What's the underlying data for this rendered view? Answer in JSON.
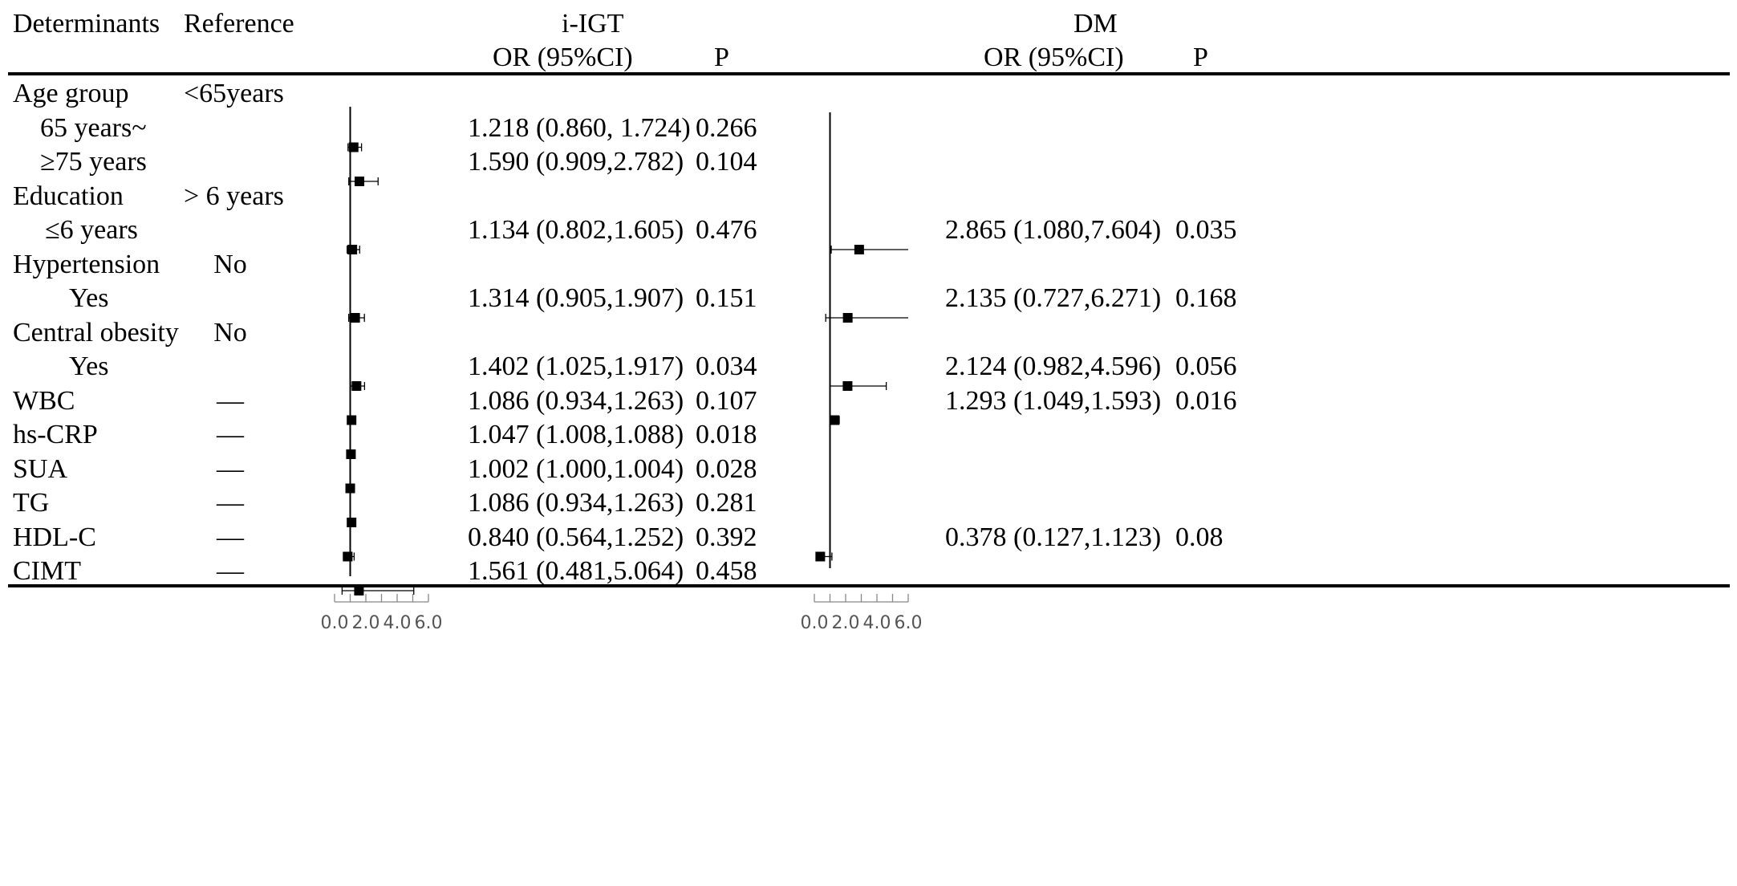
{
  "headers": {
    "determinants": "Determinants",
    "reference": "Reference",
    "group1": "i-IGT",
    "group2": "DM",
    "or1": "OR (95%CI)",
    "p1": "P",
    "or2": "OR (95%CI)",
    "p2": "P"
  },
  "rows": [
    {
      "label": "Age group",
      "ref": "<65years"
    },
    {
      "label": "65 years~",
      "ref": "",
      "or1": "1.218 (0.860, 1.724)",
      "p1": "0.266",
      "or2": "",
      "p2": ""
    },
    {
      "label": "≥75 years",
      "ref": "",
      "or1": "1.590 (0.909,2.782)",
      "p1": "0.104",
      "or2": "",
      "p2": ""
    },
    {
      "label": "Education",
      "ref": "> 6 years"
    },
    {
      "label": "≤6 years",
      "ref": "",
      "or1": "1.134 (0.802,1.605)",
      "p1": "0.476",
      "or2": "2.865 (1.080,7.604)",
      "p2": "0.035"
    },
    {
      "label": "Hypertension",
      "ref": "No"
    },
    {
      "label": "Yes",
      "ref": "",
      "or1": "1.314 (0.905,1.907)",
      "p1": "0.151",
      "or2": "2.135 (0.727,6.271)",
      "p2": "0.168"
    },
    {
      "label": "Central obesity",
      "ref": "No"
    },
    {
      "label": "Yes",
      "ref": "",
      "or1": "1.402 (1.025,1.917)",
      "p1": "0.034",
      "or2": "2.124 (0.982,4.596)",
      "p2": "0.056"
    },
    {
      "label": "WBC",
      "ref": "—",
      "or1": "1.086 (0.934,1.263)",
      "p1": "0.107",
      "or2": "1.293 (1.049,1.593)",
      "p2": "0.016"
    },
    {
      "label": "hs-CRP",
      "ref": "—",
      "or1": "1.047 (1.008,1.088)",
      "p1": "0.018",
      "or2": "",
      "p2": ""
    },
    {
      "label": "SUA",
      "ref": "—",
      "or1": "1.002 (1.000,1.004)",
      "p1": "0.028",
      "or2": "",
      "p2": ""
    },
    {
      "label": "TG",
      "ref": "—",
      "or1": "1.086 (0.934,1.263)",
      "p1": "0.281",
      "or2": "",
      "p2": ""
    },
    {
      "label": "HDL-C",
      "ref": "—",
      "or1": "0.840 (0.564,1.252)",
      "p1": "0.392",
      "or2": "0.378 (0.127,1.123)",
      "p2": "0.08"
    },
    {
      "label": "CIMT",
      "ref": "—",
      "or1": "1.561 (0.481,5.064)",
      "p1": "0.458",
      "or2": "",
      "p2": ""
    }
  ],
  "chart_data": [
    {
      "type": "scatter",
      "group": "i-IGT",
      "xlim": [
        0,
        6
      ],
      "xticks": [
        "0.0",
        "2.0",
        "4.0",
        "6.0"
      ],
      "points": [
        {
          "row": 1,
          "or": 1.218,
          "lo": 0.86,
          "hi": 1.724
        },
        {
          "row": 2,
          "or": 1.59,
          "lo": 0.909,
          "hi": 2.782
        },
        {
          "row": 4,
          "or": 1.134,
          "lo": 0.802,
          "hi": 1.605
        },
        {
          "row": 6,
          "or": 1.314,
          "lo": 0.905,
          "hi": 1.907
        },
        {
          "row": 8,
          "or": 1.402,
          "lo": 1.025,
          "hi": 1.917
        },
        {
          "row": 9,
          "or": 1.086,
          "lo": 0.934,
          "hi": 1.263
        },
        {
          "row": 10,
          "or": 1.047,
          "lo": 1.008,
          "hi": 1.088
        },
        {
          "row": 11,
          "or": 1.002,
          "lo": 1.0,
          "hi": 1.004
        },
        {
          "row": 12,
          "or": 1.086,
          "lo": 0.934,
          "hi": 1.263
        },
        {
          "row": 13,
          "or": 0.84,
          "lo": 0.564,
          "hi": 1.252
        },
        {
          "row": 14,
          "or": 1.561,
          "lo": 0.481,
          "hi": 5.064
        }
      ]
    },
    {
      "type": "scatter",
      "group": "DM",
      "xlim": [
        0,
        6
      ],
      "xticks": [
        "0.0",
        "2.0",
        "4.0",
        "6.0"
      ],
      "points": [
        {
          "row": 4,
          "or": 2.865,
          "lo": 1.08,
          "hi": 6.0
        },
        {
          "row": 6,
          "or": 2.135,
          "lo": 0.727,
          "hi": 6.0
        },
        {
          "row": 8,
          "or": 2.124,
          "lo": 0.982,
          "hi": 4.596
        },
        {
          "row": 9,
          "or": 1.293,
          "lo": 1.049,
          "hi": 1.593
        },
        {
          "row": 13,
          "or": 0.378,
          "lo": 0.127,
          "hi": 1.123
        }
      ]
    }
  ]
}
